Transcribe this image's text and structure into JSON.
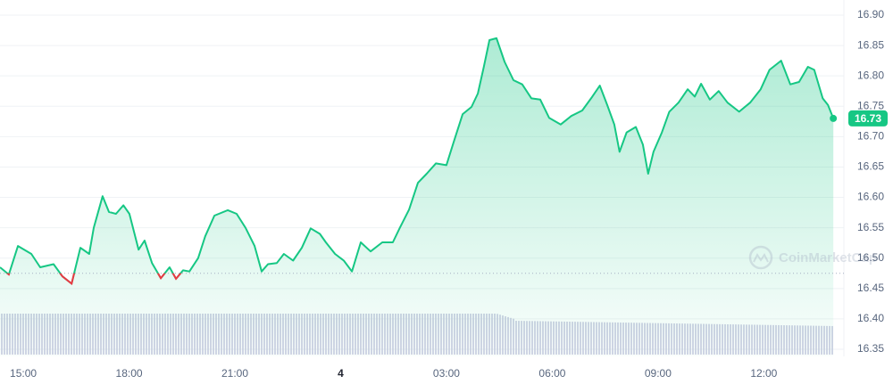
{
  "chart_data": {
    "type": "line",
    "watermark": "CoinMarketCap",
    "x": [
      14.34,
      14.59,
      14.85,
      15.23,
      15.48,
      15.86,
      16.11,
      16.37,
      16.62,
      16.87,
      17.0,
      17.25,
      17.43,
      17.63,
      17.84,
      18.01,
      18.27,
      18.44,
      18.65,
      18.9,
      19.15,
      19.33,
      19.53,
      19.71,
      19.96,
      20.16,
      20.42,
      20.8,
      21.05,
      21.3,
      21.56,
      21.76,
      21.94,
      22.19,
      22.39,
      22.65,
      22.9,
      23.15,
      23.41,
      23.58,
      23.84,
      24.09,
      24.32,
      24.57,
      24.85,
      25.18,
      25.48,
      25.68,
      25.94,
      26.19,
      26.44,
      26.7,
      27.0,
      27.2,
      27.46,
      27.71,
      27.89,
      28.06,
      28.22,
      28.42,
      28.65,
      28.9,
      29.15,
      29.41,
      29.66,
      29.91,
      30.24,
      30.54,
      30.85,
      31.1,
      31.35,
      31.56,
      31.76,
      31.91,
      32.11,
      32.37,
      32.57,
      32.72,
      32.87,
      33.11,
      33.32,
      33.58,
      33.84,
      34.04,
      34.22,
      34.47,
      34.72,
      34.97,
      35.3,
      35.61,
      35.91,
      36.16,
      36.49,
      36.75,
      37.0,
      37.25,
      37.43,
      37.67,
      37.82,
      37.97
    ],
    "series": [
      {
        "color": "#16c784",
        "below_color": "#ea3943",
        "values": [
          16.485,
          16.473,
          16.52,
          16.507,
          16.485,
          16.49,
          16.47,
          16.458,
          16.517,
          16.507,
          16.55,
          16.602,
          16.576,
          16.573,
          16.587,
          16.573,
          16.514,
          16.529,
          16.492,
          16.467,
          16.485,
          16.466,
          16.48,
          16.478,
          16.5,
          16.536,
          16.57,
          16.579,
          16.573,
          16.55,
          16.52,
          16.478,
          16.49,
          16.492,
          16.507,
          16.496,
          16.517,
          16.549,
          16.54,
          16.526,
          16.507,
          16.496,
          16.478,
          16.526,
          16.511,
          16.526,
          16.526,
          16.55,
          16.58,
          16.624,
          16.639,
          16.656,
          16.653,
          16.69,
          16.737,
          16.749,
          16.771,
          16.815,
          16.859,
          16.862,
          16.823,
          16.793,
          16.786,
          16.763,
          16.761,
          16.731,
          16.72,
          16.734,
          16.743,
          16.763,
          16.784,
          16.752,
          16.72,
          16.675,
          16.707,
          16.716,
          16.687,
          16.639,
          16.675,
          16.707,
          16.741,
          16.756,
          16.778,
          16.766,
          16.787,
          16.761,
          16.775,
          16.756,
          16.741,
          16.756,
          16.778,
          16.81,
          16.825,
          16.786,
          16.79,
          16.815,
          16.81,
          16.763,
          16.752,
          16.73
        ]
      }
    ],
    "reference_line": 16.475,
    "xlim": [
      14.34,
      38.27
    ],
    "xticks": [
      {
        "value": 15,
        "label": "15:00"
      },
      {
        "value": 18,
        "label": "18:00"
      },
      {
        "value": 21,
        "label": "21:00"
      },
      {
        "value": 24,
        "label": "4"
      },
      {
        "value": 27,
        "label": "03:00"
      },
      {
        "value": 30,
        "label": "06:00"
      },
      {
        "value": 33,
        "label": "09:00"
      },
      {
        "value": 36,
        "label": "12:00"
      }
    ],
    "ylim": [
      16.35,
      16.9
    ],
    "yticks": [
      16.35,
      {
        "value": 16.4,
        "label": "16.40"
      },
      16.45,
      {
        "value": 16.5,
        "label": "16.50"
      },
      16.55,
      {
        "value": 16.6,
        "label": "16.60"
      },
      16.65,
      {
        "value": 16.7,
        "label": "16.70"
      },
      16.75,
      {
        "value": 16.8,
        "label": "16.80"
      },
      16.85,
      {
        "value": 16.9,
        "label": "16.90"
      }
    ],
    "grid": true
  }
}
